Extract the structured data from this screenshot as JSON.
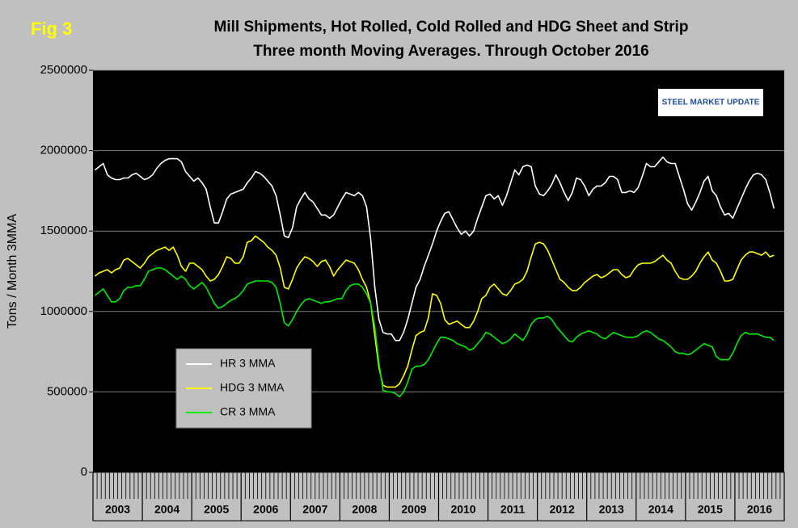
{
  "chart_data": {
    "type": "line",
    "title": "Mill Shipments, Hot Rolled, Cold Rolled and HDG Sheet and Strip",
    "subtitle": "Three month Moving Averages. Through October 2016",
    "figure_label": "Fig 3",
    "logo": "STEEL MARKET UPDATE",
    "ylabel": "Tons / Month 3MMA",
    "x_labels": [
      "2003",
      "2004",
      "2005",
      "2006",
      "2007",
      "2008",
      "2009",
      "2010",
      "2011",
      "2012",
      "2013",
      "2014",
      "2015",
      "2016"
    ],
    "ylim": [
      0,
      2500000
    ],
    "yticks": [
      0,
      500000,
      1000000,
      1500000,
      2000000,
      2500000
    ],
    "grid": true,
    "legend": "lower left",
    "series": [
      {
        "name": "HR 3 MMA",
        "color": "#ffffff",
        "values": [
          1880000,
          1900000,
          1920000,
          1850000,
          1830000,
          1820000,
          1820000,
          1830000,
          1830000,
          1850000,
          1860000,
          1840000,
          1820000,
          1830000,
          1850000,
          1890000,
          1920000,
          1940000,
          1950000,
          1950000,
          1950000,
          1930000,
          1870000,
          1840000,
          1810000,
          1830000,
          1800000,
          1760000,
          1650000,
          1550000,
          1550000,
          1620000,
          1700000,
          1730000,
          1740000,
          1750000,
          1760000,
          1800000,
          1830000,
          1870000,
          1860000,
          1840000,
          1810000,
          1780000,
          1720000,
          1600000,
          1470000,
          1460000,
          1520000,
          1650000,
          1700000,
          1740000,
          1700000,
          1680000,
          1640000,
          1600000,
          1600000,
          1580000,
          1600000,
          1650000,
          1700000,
          1740000,
          1730000,
          1720000,
          1740000,
          1720000,
          1650000,
          1450000,
          1150000,
          950000,
          870000,
          860000,
          860000,
          820000,
          820000,
          870000,
          950000,
          1050000,
          1150000,
          1200000,
          1280000,
          1350000,
          1420000,
          1500000,
          1560000,
          1610000,
          1620000,
          1570000,
          1520000,
          1480000,
          1500000,
          1470000,
          1500000,
          1580000,
          1650000,
          1720000,
          1730000,
          1700000,
          1720000,
          1660000,
          1720000,
          1800000,
          1880000,
          1850000,
          1900000,
          1910000,
          1900000,
          1780000,
          1730000,
          1720000,
          1750000,
          1790000,
          1850000,
          1800000,
          1740000,
          1690000,
          1740000,
          1830000,
          1820000,
          1780000,
          1720000,
          1760000,
          1780000,
          1780000,
          1800000,
          1840000,
          1840000,
          1820000,
          1740000,
          1740000,
          1750000,
          1740000,
          1770000,
          1840000,
          1920000,
          1900000,
          1900000,
          1930000,
          1960000,
          1930000,
          1920000,
          1920000,
          1840000,
          1760000,
          1670000,
          1630000,
          1680000,
          1740000,
          1810000,
          1840000,
          1750000,
          1720000,
          1650000,
          1600000,
          1610000,
          1580000,
          1640000,
          1700000,
          1760000,
          1810000,
          1850000,
          1860000,
          1850000,
          1820000,
          1740000,
          1640000
        ]
      },
      {
        "name": "HDG 3 MMA",
        "color": "#ffff00",
        "values": [
          1220000,
          1240000,
          1250000,
          1260000,
          1240000,
          1260000,
          1270000,
          1320000,
          1330000,
          1310000,
          1290000,
          1270000,
          1300000,
          1340000,
          1360000,
          1380000,
          1390000,
          1400000,
          1380000,
          1400000,
          1350000,
          1280000,
          1250000,
          1300000,
          1300000,
          1280000,
          1260000,
          1220000,
          1190000,
          1200000,
          1230000,
          1280000,
          1340000,
          1330000,
          1300000,
          1300000,
          1340000,
          1430000,
          1440000,
          1470000,
          1450000,
          1430000,
          1400000,
          1380000,
          1350000,
          1270000,
          1150000,
          1140000,
          1200000,
          1270000,
          1310000,
          1340000,
          1330000,
          1310000,
          1280000,
          1310000,
          1320000,
          1280000,
          1220000,
          1260000,
          1290000,
          1320000,
          1310000,
          1300000,
          1260000,
          1200000,
          1150000,
          1050000,
          850000,
          650000,
          540000,
          530000,
          530000,
          530000,
          550000,
          600000,
          660000,
          760000,
          850000,
          870000,
          880000,
          960000,
          1110000,
          1100000,
          1050000,
          950000,
          920000,
          930000,
          940000,
          920000,
          900000,
          900000,
          940000,
          1000000,
          1080000,
          1100000,
          1150000,
          1170000,
          1140000,
          1110000,
          1100000,
          1130000,
          1170000,
          1180000,
          1200000,
          1250000,
          1340000,
          1420000,
          1430000,
          1420000,
          1380000,
          1320000,
          1260000,
          1200000,
          1180000,
          1150000,
          1130000,
          1130000,
          1150000,
          1180000,
          1200000,
          1220000,
          1230000,
          1210000,
          1220000,
          1240000,
          1260000,
          1260000,
          1230000,
          1210000,
          1220000,
          1260000,
          1290000,
          1300000,
          1300000,
          1300000,
          1310000,
          1330000,
          1350000,
          1320000,
          1300000,
          1250000,
          1210000,
          1200000,
          1200000,
          1220000,
          1250000,
          1300000,
          1340000,
          1370000,
          1320000,
          1300000,
          1250000,
          1190000,
          1190000,
          1200000,
          1260000,
          1320000,
          1350000,
          1370000,
          1370000,
          1360000,
          1350000,
          1370000,
          1340000,
          1350000
        ]
      },
      {
        "name": "CR 3 MMA",
        "color": "#00ee00",
        "values": [
          1100000,
          1120000,
          1140000,
          1100000,
          1060000,
          1060000,
          1080000,
          1130000,
          1150000,
          1150000,
          1160000,
          1160000,
          1200000,
          1250000,
          1260000,
          1270000,
          1270000,
          1260000,
          1240000,
          1220000,
          1200000,
          1220000,
          1200000,
          1160000,
          1140000,
          1160000,
          1180000,
          1150000,
          1100000,
          1050000,
          1020000,
          1030000,
          1050000,
          1070000,
          1080000,
          1100000,
          1130000,
          1170000,
          1180000,
          1190000,
          1190000,
          1190000,
          1190000,
          1180000,
          1150000,
          1050000,
          930000,
          910000,
          950000,
          1000000,
          1040000,
          1070000,
          1080000,
          1070000,
          1060000,
          1050000,
          1060000,
          1060000,
          1070000,
          1080000,
          1080000,
          1130000,
          1160000,
          1170000,
          1170000,
          1150000,
          1110000,
          1050000,
          900000,
          680000,
          510000,
          500000,
          500000,
          490000,
          470000,
          500000,
          560000,
          640000,
          660000,
          660000,
          670000,
          700000,
          750000,
          800000,
          840000,
          840000,
          830000,
          820000,
          800000,
          790000,
          780000,
          760000,
          770000,
          800000,
          830000,
          870000,
          860000,
          840000,
          820000,
          800000,
          810000,
          830000,
          860000,
          840000,
          820000,
          860000,
          920000,
          950000,
          960000,
          960000,
          970000,
          950000,
          910000,
          880000,
          850000,
          820000,
          810000,
          840000,
          860000,
          870000,
          880000,
          870000,
          860000,
          840000,
          830000,
          850000,
          870000,
          860000,
          850000,
          840000,
          840000,
          840000,
          850000,
          870000,
          880000,
          870000,
          850000,
          830000,
          820000,
          800000,
          780000,
          750000,
          740000,
          740000,
          730000,
          740000,
          760000,
          780000,
          800000,
          790000,
          780000,
          720000,
          700000,
          700000,
          700000,
          740000,
          800000,
          850000,
          870000,
          860000,
          860000,
          860000,
          850000,
          840000,
          840000,
          820000
        ]
      }
    ]
  }
}
